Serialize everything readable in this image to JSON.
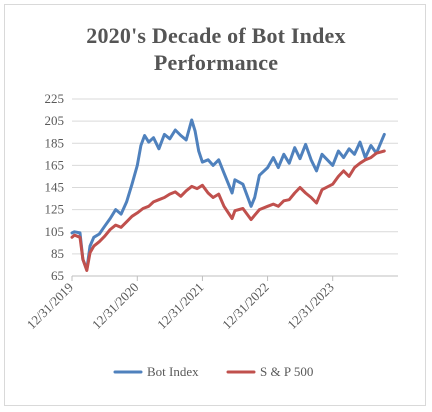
{
  "chart_data": {
    "type": "line",
    "title_line1": "2020's Decade of Bot Index",
    "title_line2": "Performance",
    "xlabel": "",
    "ylabel": "",
    "ylim": [
      65,
      225
    ],
    "yticks": [
      65,
      85,
      105,
      125,
      145,
      165,
      185,
      205,
      225
    ],
    "xlim": [
      "12/31/2019",
      "12/31/2024"
    ],
    "xticks": [
      "12/31/2019",
      "12/31/2020",
      "12/31/2021",
      "12/31/2022",
      "12/31/2023"
    ],
    "grid": "horizontal",
    "legend_position": "bottom",
    "series": [
      {
        "name": "Bot Index",
        "color": "#4f81bd",
        "x": [
          "12/31/2019",
          "01/14/2020",
          "02/14/2020",
          "03/01/2020",
          "03/23/2020",
          "04/10/2020",
          "05/01/2020",
          "06/01/2020",
          "07/01/2020",
          "08/01/2020",
          "09/01/2020",
          "10/01/2020",
          "11/01/2020",
          "12/01/2020",
          "12/31/2020",
          "01/20/2021",
          "02/10/2021",
          "03/05/2021",
          "04/01/2021",
          "05/01/2021",
          "06/01/2021",
          "07/01/2021",
          "08/01/2021",
          "09/01/2021",
          "10/01/2021",
          "11/01/2021",
          "11/20/2021",
          "12/10/2021",
          "12/31/2021",
          "02/01/2022",
          "03/01/2022",
          "04/01/2022",
          "05/01/2022",
          "06/15/2022",
          "07/01/2022",
          "08/15/2022",
          "09/30/2022",
          "10/20/2022",
          "11/15/2022",
          "12/31/2022",
          "02/01/2023",
          "03/01/2023",
          "04/01/2023",
          "05/01/2023",
          "06/01/2023",
          "07/01/2023",
          "08/01/2023",
          "09/01/2023",
          "10/01/2023",
          "11/01/2023",
          "12/31/2023",
          "02/01/2024",
          "03/01/2024",
          "04/01/2024",
          "05/01/2024",
          "06/01/2024",
          "07/01/2024",
          "08/01/2024",
          "09/01/2024",
          "10/15/2024"
        ],
        "values": [
          104,
          105,
          104,
          80,
          71,
          92,
          100,
          103,
          110,
          117,
          125,
          121,
          132,
          148,
          165,
          183,
          192,
          186,
          190,
          180,
          193,
          189,
          197,
          192,
          188,
          206,
          196,
          178,
          168,
          170,
          165,
          170,
          158,
          140,
          152,
          148,
          128,
          136,
          156,
          163,
          172,
          163,
          175,
          167,
          181,
          171,
          184,
          170,
          160,
          175,
          165,
          178,
          172,
          180,
          175,
          186,
          172,
          183,
          176,
          193
        ]
      },
      {
        "name": "S & P 500",
        "color": "#c0504d",
        "x": [
          "12/31/2019",
          "01/14/2020",
          "02/14/2020",
          "03/01/2020",
          "03/23/2020",
          "04/10/2020",
          "05/01/2020",
          "06/01/2020",
          "07/01/2020",
          "08/01/2020",
          "09/01/2020",
          "10/01/2020",
          "11/01/2020",
          "12/01/2020",
          "12/31/2020",
          "02/01/2021",
          "03/05/2021",
          "04/01/2021",
          "05/01/2021",
          "06/01/2021",
          "07/01/2021",
          "08/01/2021",
          "09/01/2021",
          "10/01/2021",
          "11/01/2021",
          "12/01/2021",
          "12/31/2021",
          "02/01/2022",
          "03/01/2022",
          "04/01/2022",
          "05/01/2022",
          "06/15/2022",
          "07/01/2022",
          "08/15/2022",
          "09/30/2022",
          "10/20/2022",
          "11/15/2022",
          "12/31/2022",
          "02/01/2023",
          "03/01/2023",
          "04/01/2023",
          "05/01/2023",
          "06/01/2023",
          "07/01/2023",
          "08/01/2023",
          "09/01/2023",
          "10/01/2023",
          "11/01/2023",
          "12/31/2023",
          "02/01/2024",
          "03/01/2024",
          "04/01/2024",
          "05/01/2024",
          "06/01/2024",
          "07/01/2024",
          "08/01/2024",
          "09/01/2024",
          "10/15/2024"
        ],
        "values": [
          100,
          102,
          100,
          80,
          70,
          86,
          92,
          96,
          101,
          107,
          111,
          109,
          114,
          119,
          122,
          126,
          128,
          132,
          134,
          136,
          139,
          141,
          137,
          142,
          146,
          144,
          147,
          140,
          136,
          139,
          128,
          117,
          124,
          126,
          116,
          120,
          125,
          128,
          130,
          128,
          133,
          134,
          140,
          145,
          140,
          136,
          131,
          143,
          148,
          155,
          160,
          155,
          163,
          167,
          170,
          172,
          176,
          178
        ]
      }
    ]
  }
}
